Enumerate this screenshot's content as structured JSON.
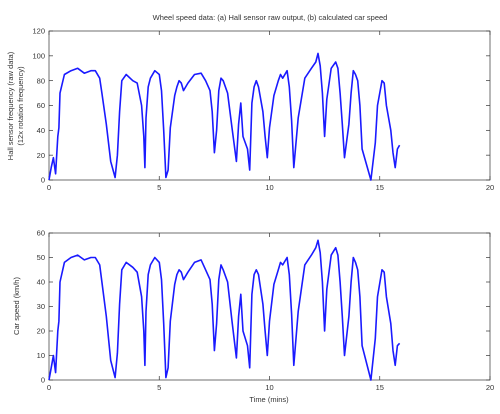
{
  "figure": {
    "title": "Wheel speed data: (a) Hall sensor raw output, (b) calculated car speed",
    "colors": {
      "series": "#1a1aff",
      "axes": "#333333",
      "background": "#ffffff"
    }
  },
  "chart_data": [
    {
      "type": "line",
      "title": "",
      "xlabel": "",
      "ylabel_line1": "Hall sensor frequency (raw data)",
      "ylabel_line2": "(12x rotation frequency)",
      "xlim": [
        0,
        20
      ],
      "ylim": [
        0,
        120
      ],
      "xticks": [
        0,
        5,
        10,
        15,
        20
      ],
      "yticks": [
        0,
        20,
        40,
        60,
        80,
        100,
        120
      ],
      "grid": false,
      "series": [
        {
          "x": [
            0,
            0.1,
            0.2,
            0.3,
            0.4,
            0.45,
            0.5,
            0.7,
            1.0,
            1.3,
            1.6,
            1.9,
            2.1,
            2.3,
            2.4,
            2.6,
            2.8,
            3.0,
            3.1,
            3.2,
            3.3,
            3.5,
            3.8,
            4.0,
            4.2,
            4.3,
            4.35,
            4.4,
            4.5,
            4.6,
            4.8,
            5.0,
            5.1,
            5.2,
            5.3,
            5.4,
            5.5,
            5.7,
            5.8,
            5.9,
            6.0,
            6.1,
            6.3,
            6.6,
            6.9,
            7.1,
            7.3,
            7.4,
            7.5,
            7.6,
            7.7,
            7.8,
            7.9,
            8.1,
            8.3,
            8.5,
            8.6,
            8.7,
            8.8,
            9.0,
            9.1,
            9.2,
            9.3,
            9.4,
            9.5,
            9.7,
            9.8,
            9.9,
            10.0,
            10.2,
            10.4,
            10.5,
            10.6,
            10.8,
            10.9,
            11.0,
            11.1,
            11.3,
            11.6,
            11.9,
            12.1,
            12.2,
            12.3,
            12.4,
            12.5,
            12.6,
            12.8,
            13.0,
            13.1,
            13.2,
            13.3,
            13.4,
            13.6,
            13.7,
            13.8,
            13.9,
            14.0,
            14.1,
            14.2,
            14.6,
            14.8,
            14.9,
            15.1,
            15.2,
            15.3,
            15.5,
            15.6,
            15.7,
            15.8,
            15.9
          ],
          "y": [
            0,
            10,
            18,
            5,
            35,
            42,
            70,
            85,
            88,
            90,
            86,
            88,
            88,
            82,
            70,
            45,
            15,
            2,
            20,
            55,
            80,
            85,
            80,
            78,
            60,
            35,
            10,
            50,
            75,
            82,
            88,
            85,
            72,
            40,
            2,
            8,
            42,
            68,
            75,
            80,
            78,
            72,
            78,
            85,
            86,
            80,
            72,
            55,
            22,
            40,
            72,
            82,
            80,
            70,
            42,
            15,
            45,
            62,
            35,
            25,
            8,
            62,
            75,
            80,
            75,
            55,
            35,
            18,
            42,
            68,
            80,
            85,
            82,
            88,
            75,
            48,
            10,
            50,
            82,
            90,
            95,
            102,
            92,
            70,
            35,
            65,
            90,
            95,
            90,
            70,
            45,
            18,
            45,
            70,
            88,
            85,
            80,
            60,
            25,
            0,
            30,
            60,
            80,
            78,
            60,
            40,
            22,
            10,
            25,
            28
          ]
        }
      ]
    },
    {
      "type": "line",
      "title": "",
      "xlabel": "Time (mins)",
      "ylabel": "Car speed (km/h)",
      "xlim": [
        0,
        20
      ],
      "ylim": [
        0,
        60
      ],
      "xticks": [
        0,
        5,
        10,
        15,
        20
      ],
      "yticks": [
        0,
        10,
        20,
        30,
        40,
        50,
        60
      ],
      "grid": false,
      "series": [
        {
          "x": [
            0,
            0.1,
            0.2,
            0.3,
            0.4,
            0.45,
            0.5,
            0.7,
            1.0,
            1.3,
            1.6,
            1.9,
            2.1,
            2.3,
            2.4,
            2.6,
            2.8,
            3.0,
            3.1,
            3.2,
            3.3,
            3.5,
            3.8,
            4.0,
            4.2,
            4.3,
            4.35,
            4.4,
            4.5,
            4.6,
            4.8,
            5.0,
            5.1,
            5.2,
            5.3,
            5.4,
            5.5,
            5.7,
            5.8,
            5.9,
            6.0,
            6.1,
            6.3,
            6.6,
            6.9,
            7.1,
            7.3,
            7.4,
            7.5,
            7.6,
            7.7,
            7.8,
            7.9,
            8.1,
            8.3,
            8.5,
            8.6,
            8.7,
            8.8,
            9.0,
            9.1,
            9.2,
            9.3,
            9.4,
            9.5,
            9.7,
            9.8,
            9.9,
            10.0,
            10.2,
            10.4,
            10.5,
            10.6,
            10.8,
            10.9,
            11.0,
            11.1,
            11.3,
            11.6,
            11.9,
            12.1,
            12.2,
            12.3,
            12.4,
            12.5,
            12.6,
            12.8,
            13.0,
            13.1,
            13.2,
            13.3,
            13.4,
            13.6,
            13.7,
            13.8,
            13.9,
            14.0,
            14.1,
            14.2,
            14.6,
            14.8,
            14.9,
            15.1,
            15.2,
            15.3,
            15.5,
            15.6,
            15.7,
            15.8,
            15.9
          ],
          "y": [
            0,
            5,
            10,
            3,
            20,
            24,
            40,
            48,
            50,
            51,
            49,
            50,
            50,
            47,
            40,
            26,
            8,
            1,
            11,
            31,
            45,
            48,
            46,
            44,
            34,
            20,
            6,
            28,
            43,
            47,
            50,
            48,
            41,
            23,
            1,
            5,
            24,
            39,
            43,
            45,
            44,
            41,
            44,
            48,
            49,
            45,
            41,
            31,
            12,
            23,
            41,
            47,
            45,
            40,
            24,
            9,
            26,
            35,
            20,
            14,
            5,
            35,
            43,
            45,
            43,
            31,
            20,
            10,
            24,
            39,
            45,
            48,
            47,
            50,
            43,
            27,
            6,
            28,
            47,
            51,
            54,
            57,
            52,
            40,
            20,
            37,
            51,
            54,
            51,
            40,
            26,
            10,
            26,
            40,
            50,
            48,
            45,
            34,
            14,
            0,
            17,
            34,
            45,
            44,
            34,
            23,
            12,
            6,
            14,
            15
          ]
        }
      ]
    }
  ]
}
